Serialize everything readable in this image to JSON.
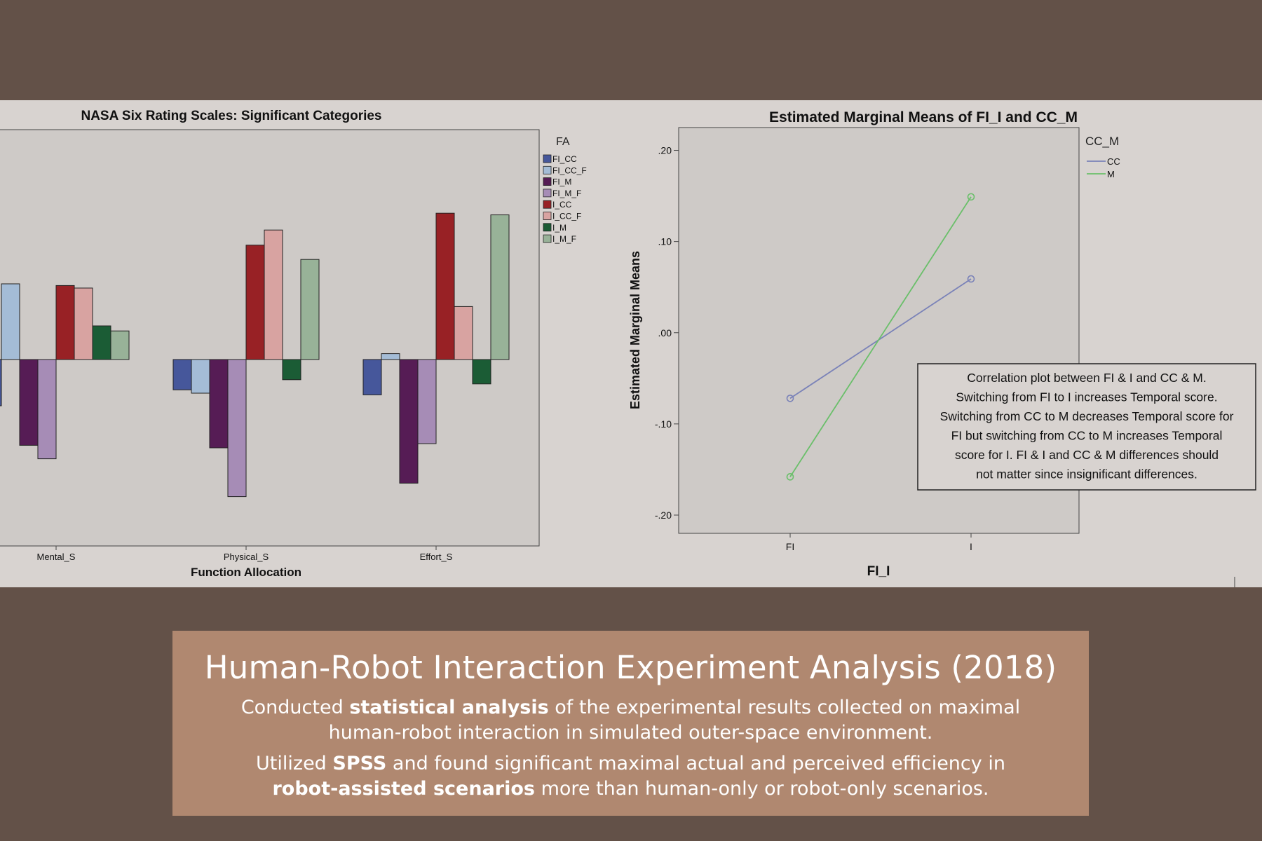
{
  "colors": {
    "page_bg": "#635148",
    "card_bg": "#b08870",
    "plot_bg": "#cecac7"
  },
  "chart_data": [
    {
      "type": "bar",
      "title": "NASA Six Rating Scales: Significant Categories",
      "xlabel": "Function Allocation",
      "ylabel": "",
      "legend_title": "FA",
      "legend_position": "right",
      "categories": [
        "Mental_S",
        "Physical_S",
        "Effort_S"
      ],
      "series": [
        {
          "name": "FI_CC",
          "color": "#46579b",
          "values": [
            -0.55,
            -0.36,
            -0.42
          ]
        },
        {
          "name": "FI_CC_F",
          "color": "#a4bcd6",
          "values": [
            0.9,
            -0.4,
            0.07
          ]
        },
        {
          "name": "FI_M",
          "color": "#561c55",
          "values": [
            -1.02,
            -1.05,
            -1.47
          ]
        },
        {
          "name": "FI_M_F",
          "color": "#a68cb6",
          "values": [
            -1.18,
            -1.63,
            -1.0
          ]
        },
        {
          "name": "I_CC",
          "color": "#982125",
          "values": [
            0.88,
            1.36,
            1.74
          ]
        },
        {
          "name": "I_CC_F",
          "color": "#d8a3a1",
          "values": [
            0.85,
            1.54,
            0.63
          ]
        },
        {
          "name": "I_M",
          "color": "#1b5c35",
          "values": [
            0.4,
            -0.24,
            -0.29
          ]
        },
        {
          "name": "I_M_F",
          "color": "#98b298",
          "values": [
            0.34,
            1.19,
            1.72
          ]
        }
      ]
    },
    {
      "type": "line",
      "title": "Estimated Marginal Means of FI_I and CC_M",
      "xlabel": "FI_I",
      "ylabel": "Estimated Marginal Means",
      "legend_title": "CC_M",
      "legend_position": "top-right",
      "x": [
        "FI",
        "I"
      ],
      "y_ticks": [
        ".20",
        ".10",
        ".00",
        "-.10",
        "-.20"
      ],
      "ylim": [
        -0.22,
        0.225
      ],
      "series": [
        {
          "name": "CC",
          "color": "#7a82b8",
          "values": [
            -0.072,
            0.059
          ]
        },
        {
          "name": "M",
          "color": "#6abf6a",
          "values": [
            -0.158,
            0.149
          ]
        }
      ],
      "annotation": "Correlation plot between FI & I and CC & M. Switching from FI to I increases Temporal score. Switching from CC to M decreases Temporal score for FI but switching from CC to M increases Temporal score for I. FI & I and CC & M differences should not matter since insignificant differences."
    }
  ],
  "card": {
    "title": "Human-Robot Interaction Experiment Analysis (2018)",
    "p1_a": "Conducted ",
    "p1_b": "statistical analysis",
    "p1_c": " of the experimental results collected on maximal human-robot interaction in simulated outer-space environment.",
    "p2_a": "Utilized ",
    "p2_b": "SPSS",
    "p2_c": " and found significant maximal actual and perceived efficiency in ",
    "p2_d": "robot-assisted scenarios",
    "p2_e": " more than human-only or robot-only scenarios."
  }
}
